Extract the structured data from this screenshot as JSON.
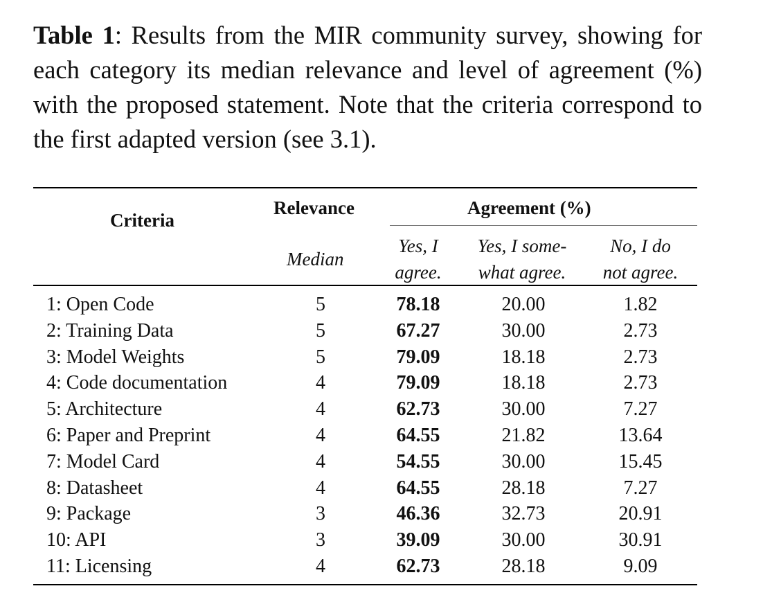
{
  "caption": {
    "label": "Table 1",
    "text": ": Results from the MIR community survey, showing for each category its median relevance and level of agreement (%) with the proposed statement. Note that the criteria correspond to the first adapted version (see 3.1)."
  },
  "table": {
    "header": {
      "criteria": "Criteria",
      "relevance": "Relevance",
      "median": "Median",
      "agreement": "Agreement (%)",
      "yes_line1": "Yes, I",
      "yes_line2": "agree.",
      "some_line1": "Yes, I some-",
      "some_line2": "what agree.",
      "no_line1": "No, I do",
      "no_line2": "not agree."
    },
    "rows": [
      {
        "criteria": "1: Open Code",
        "median": "5",
        "yes": "78.18",
        "somewhat": "20.00",
        "no": "1.82"
      },
      {
        "criteria": "2: Training Data",
        "median": "5",
        "yes": "67.27",
        "somewhat": "30.00",
        "no": "2.73"
      },
      {
        "criteria": "3: Model Weights",
        "median": "5",
        "yes": "79.09",
        "somewhat": "18.18",
        "no": "2.73"
      },
      {
        "criteria": "4: Code documentation",
        "median": "4",
        "yes": "79.09",
        "somewhat": "18.18",
        "no": "2.73"
      },
      {
        "criteria": "5: Architecture",
        "median": "4",
        "yes": "62.73",
        "somewhat": "30.00",
        "no": "7.27"
      },
      {
        "criteria": "6: Paper and Preprint",
        "median": "4",
        "yes": "64.55",
        "somewhat": "21.82",
        "no": "13.64"
      },
      {
        "criteria": "7: Model Card",
        "median": "4",
        "yes": "54.55",
        "somewhat": "30.00",
        "no": "15.45"
      },
      {
        "criteria": "8: Datasheet",
        "median": "4",
        "yes": "64.55",
        "somewhat": "28.18",
        "no": "7.27"
      },
      {
        "criteria": "9: Package",
        "median": "3",
        "yes": "46.36",
        "somewhat": "32.73",
        "no": "20.91"
      },
      {
        "criteria": "10: API",
        "median": "3",
        "yes": "39.09",
        "somewhat": "30.00",
        "no": "30.91"
      },
      {
        "criteria": "11: Licensing",
        "median": "4",
        "yes": "62.73",
        "somewhat": "28.18",
        "no": "9.09"
      }
    ]
  }
}
